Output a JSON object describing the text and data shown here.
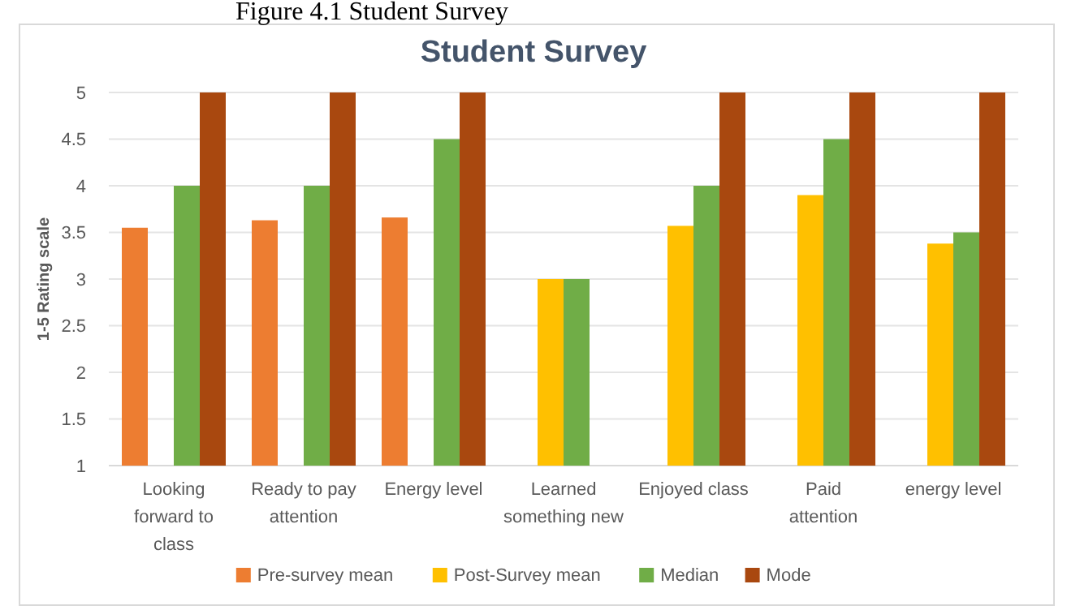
{
  "chart_data": {
    "type": "bar",
    "title": "Student Survey",
    "ylabel": "1-5 Rating scale",
    "annotations": [
      "Figure 4.1 Student Survey"
    ],
    "categories": [
      "Looking forward to class",
      "Ready to pay attention",
      "Energy level",
      "Learned something new",
      "Enjoyed class",
      "Paid attention",
      "energy level"
    ],
    "series": [
      {
        "name": "Pre-survey mean",
        "color": "#ed7d31",
        "values": [
          3.55,
          3.63,
          3.66,
          null,
          null,
          null,
          null
        ]
      },
      {
        "name": "Post-Survey mean",
        "color": "#ffc000",
        "values": [
          null,
          null,
          null,
          3.0,
          3.57,
          3.9,
          3.38
        ]
      },
      {
        "name": "Median",
        "color": "#70ad47",
        "values": [
          4,
          4,
          4.5,
          3,
          4,
          4.5,
          3.5
        ]
      },
      {
        "name": "Mode",
        "color": "#a9480f",
        "values": [
          5,
          5,
          5,
          null,
          5,
          5,
          5
        ]
      }
    ],
    "ylim": [
      1,
      5
    ],
    "yticks": [
      1,
      1.5,
      2,
      2.5,
      3,
      3.5,
      4,
      4.5,
      5
    ],
    "grid": "y",
    "legend": "bottom"
  }
}
